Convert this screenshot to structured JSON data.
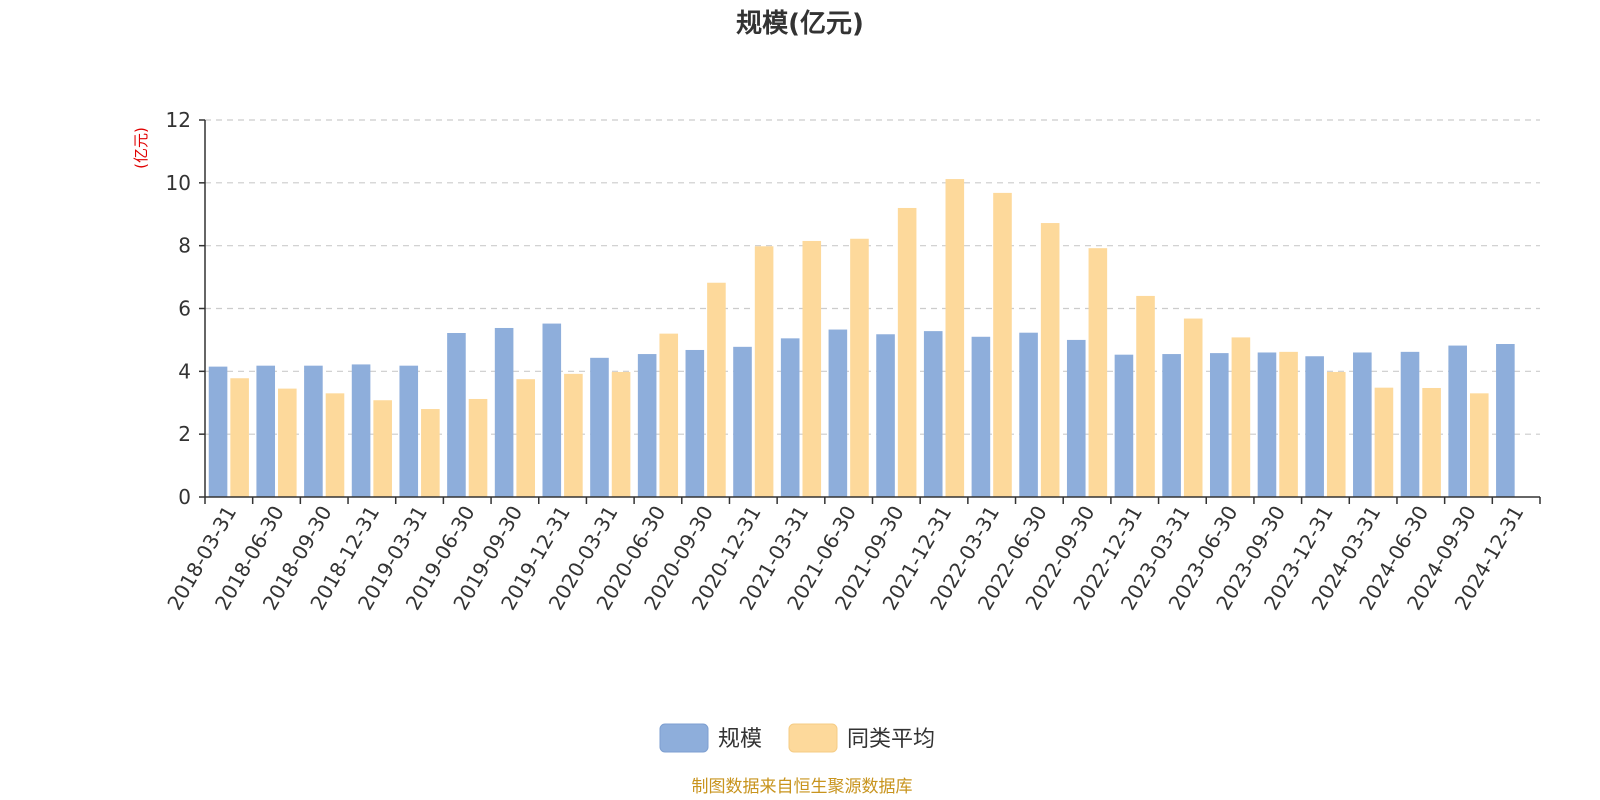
{
  "chart_data": {
    "type": "bar",
    "title": "规模(亿元)",
    "ylabel": "(亿元)",
    "xlabel": "",
    "ylim": [
      0,
      12
    ],
    "yticks": [
      0,
      2,
      4,
      6,
      8,
      10,
      12
    ],
    "grid": true,
    "legend_position": "bottom-center",
    "categories": [
      "2018-03-31",
      "2018-06-30",
      "2018-09-30",
      "2018-12-31",
      "2019-03-31",
      "2019-06-30",
      "2019-09-30",
      "2019-12-31",
      "2020-03-31",
      "2020-06-30",
      "2020-09-30",
      "2020-12-31",
      "2021-03-31",
      "2021-06-30",
      "2021-09-30",
      "2021-12-31",
      "2022-03-31",
      "2022-06-30",
      "2022-09-30",
      "2022-12-31",
      "2023-03-31",
      "2023-06-30",
      "2023-09-30",
      "2023-12-31",
      "2024-03-31",
      "2024-06-30",
      "2024-09-30",
      "2024-12-31"
    ],
    "series": [
      {
        "name": "规模",
        "color": "#8eaedb",
        "values": [
          4.15,
          4.18,
          4.18,
          4.22,
          4.18,
          5.22,
          5.38,
          5.52,
          4.43,
          4.55,
          4.68,
          4.78,
          5.05,
          5.33,
          5.18,
          5.28,
          5.1,
          5.23,
          5.0,
          4.53,
          4.55,
          4.58,
          4.6,
          4.48,
          4.6,
          4.62,
          4.82,
          4.87
        ]
      },
      {
        "name": "同类平均",
        "color": "#fdd99b",
        "values": [
          3.78,
          3.45,
          3.3,
          3.08,
          2.8,
          3.12,
          3.75,
          3.92,
          3.98,
          5.2,
          6.82,
          7.98,
          8.15,
          8.22,
          9.2,
          10.12,
          9.68,
          8.72,
          7.92,
          6.4,
          5.68,
          5.08,
          4.62,
          3.98,
          3.48,
          3.47,
          3.3,
          null
        ]
      }
    ],
    "source": "制图数据来自恒生聚源数据库"
  }
}
